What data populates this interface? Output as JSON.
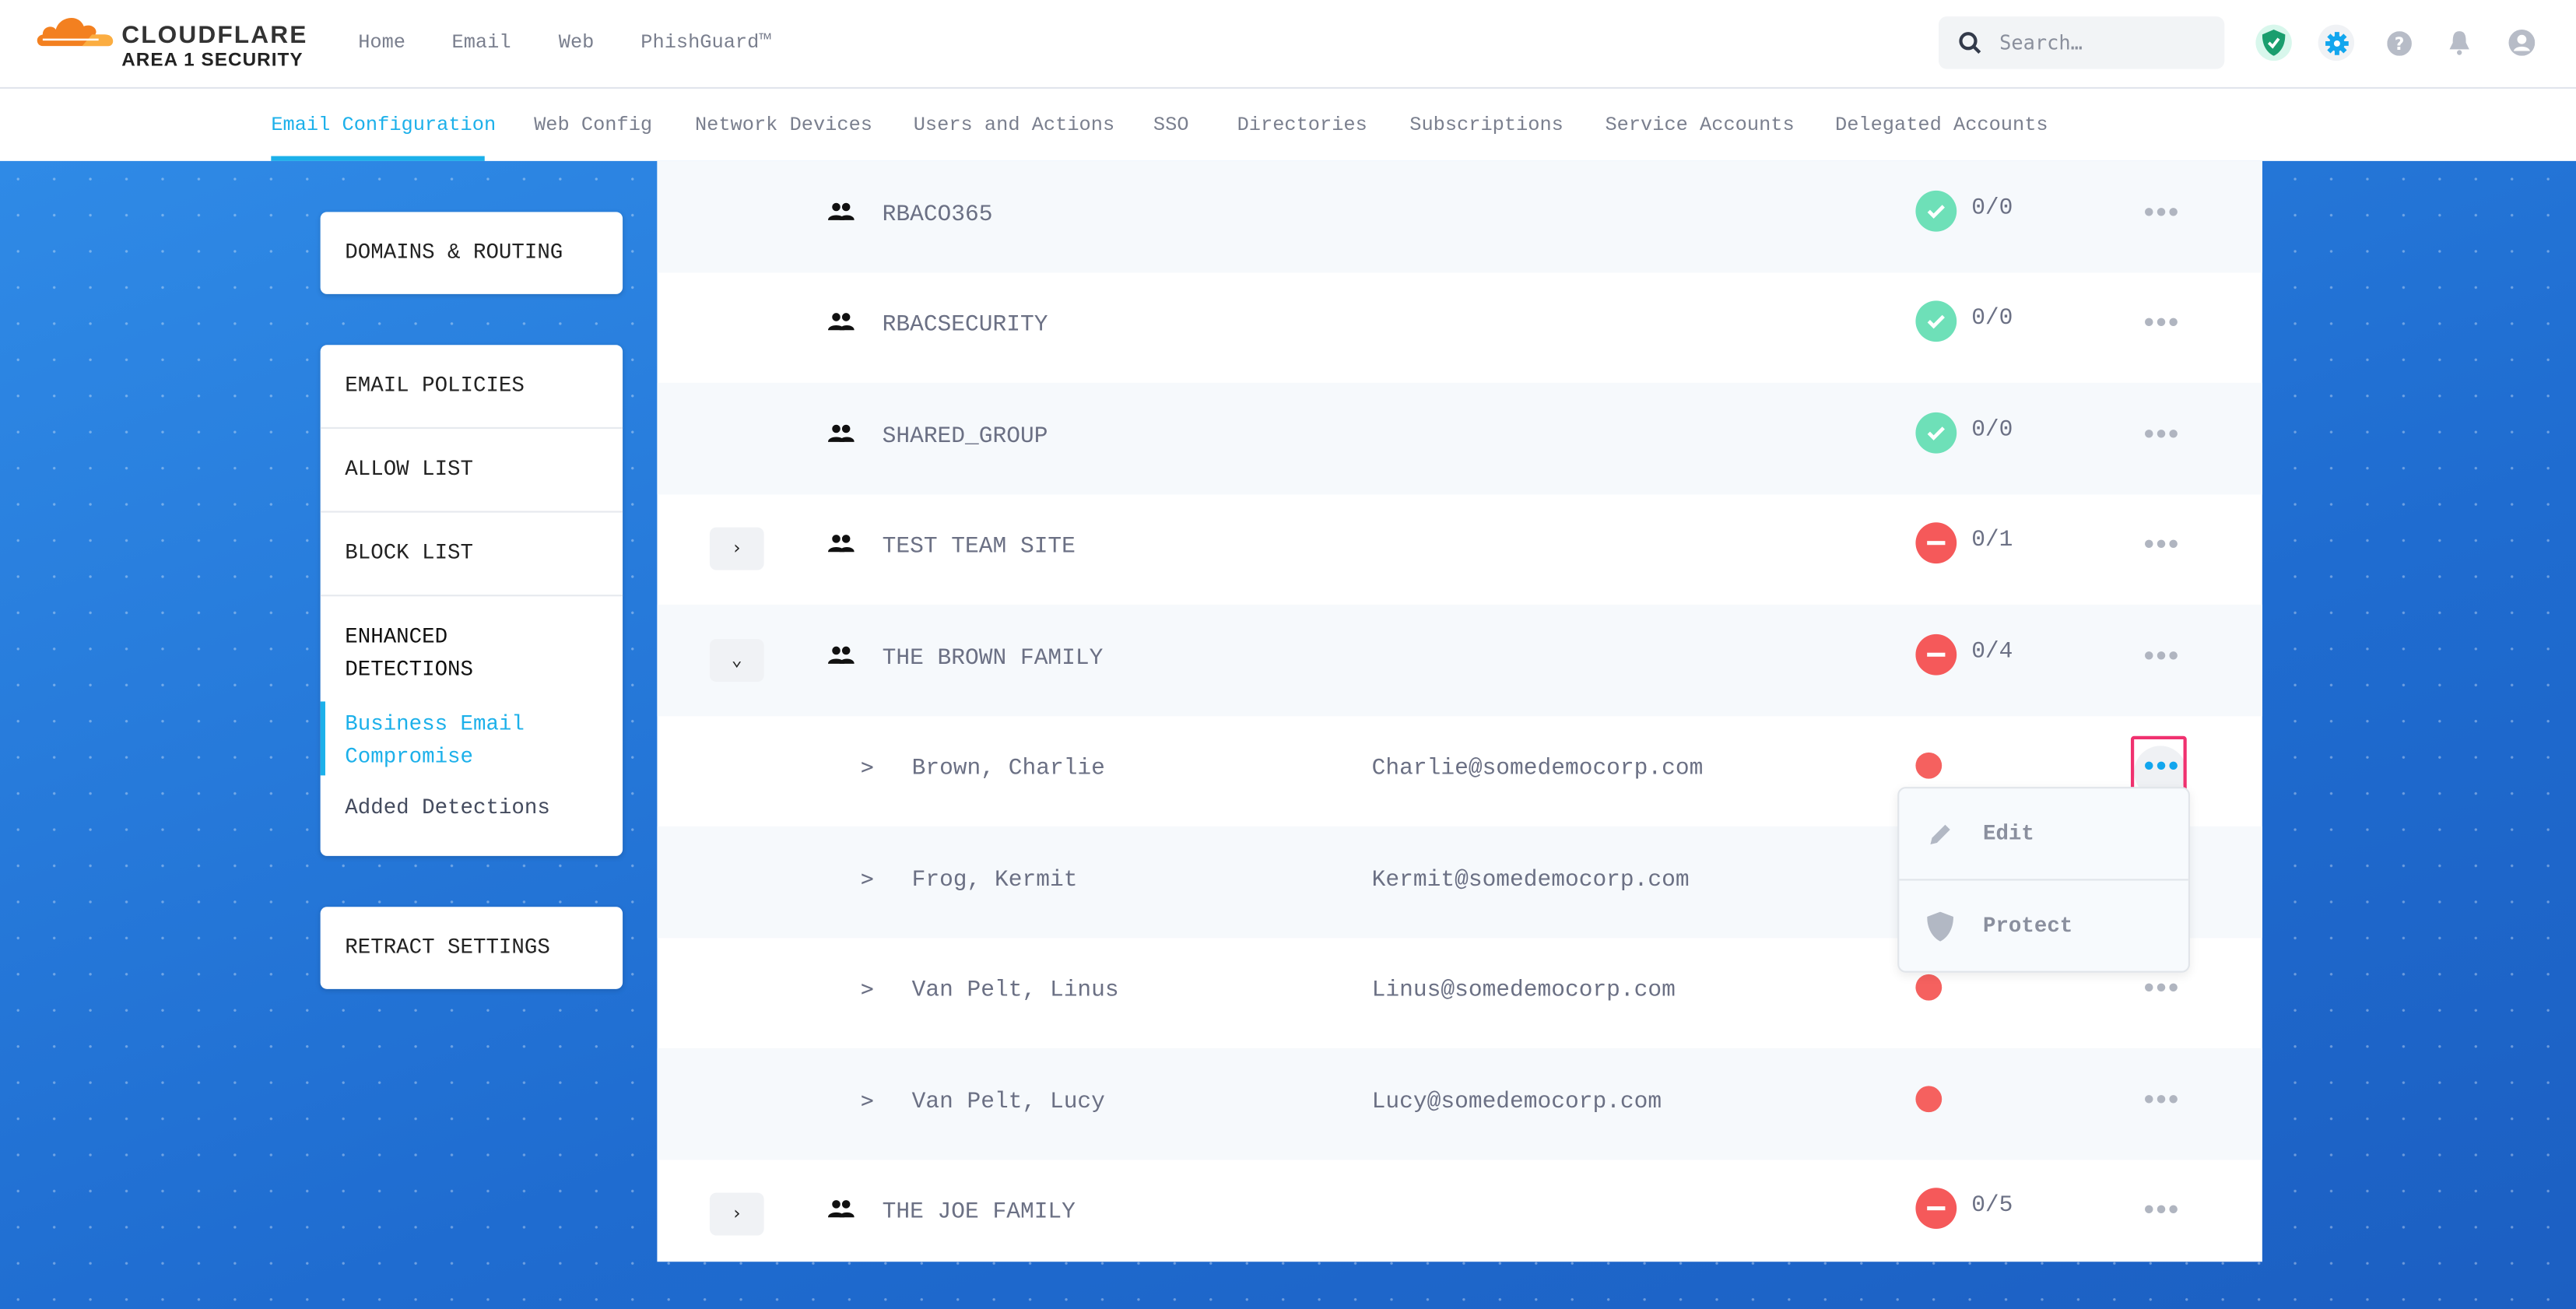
{
  "header": {
    "brand": "CLOUDFLARE",
    "brand_sub": "AREA 1 SECURITY",
    "nav": [
      "Home",
      "Email",
      "Web",
      "PhishGuard™"
    ],
    "search_placeholder": "Search…",
    "icons": [
      "shield-check-icon",
      "gear-icon",
      "help-icon",
      "bell-icon",
      "user-icon"
    ]
  },
  "subnav": {
    "tabs": [
      "Email Configuration",
      "Web Config",
      "Network Devices",
      "Users and Actions",
      "SSO",
      "Directories",
      "Subscriptions",
      "Service Accounts",
      "Delegated Accounts"
    ],
    "active": "Email Configuration"
  },
  "sidebar": {
    "domains": "DOMAINS & ROUTING",
    "email_policies": "EMAIL POLICIES",
    "allow_list": "ALLOW LIST",
    "block_list": "BLOCK LIST",
    "enhanced_1": "ENHANCED",
    "enhanced_2": "DETECTIONS",
    "bec_1": "Business Email",
    "bec_2": "Compromise",
    "added": "Added Detections",
    "retract": "RETRACT SETTINGS"
  },
  "rows": [
    {
      "type": "group",
      "name": "RBACO365",
      "status": "ok",
      "count": "0/0"
    },
    {
      "type": "group",
      "name": "RBACSECURITY",
      "status": "ok",
      "count": "0/0"
    },
    {
      "type": "group",
      "name": "SHARED_GROUP",
      "status": "ok",
      "count": "0/0"
    },
    {
      "type": "group",
      "name": "TEST TEAM SITE",
      "status": "bad",
      "count": "0/1",
      "expand": "collapsed"
    },
    {
      "type": "group",
      "name": "THE BROWN FAMILY",
      "status": "bad",
      "count": "0/4",
      "expand": "expanded"
    },
    {
      "type": "member",
      "name": "Brown, Charlie",
      "email": "Charlie@somedemocorp.com"
    },
    {
      "type": "member",
      "name": "Frog, Kermit",
      "email": "Kermit@somedemocorp.com"
    },
    {
      "type": "member",
      "name": "Van Pelt, Linus",
      "email": "Linus@somedemocorp.com"
    },
    {
      "type": "member",
      "name": "Van Pelt, Lucy",
      "email": "Lucy@somedemocorp.com"
    },
    {
      "type": "group",
      "name": "THE JOE FAMILY",
      "status": "bad",
      "count": "0/5",
      "expand": "collapsed"
    }
  ],
  "menu": {
    "edit": "Edit",
    "protect": "Protect"
  },
  "glyphs": {
    "caret": ">",
    "more": "•••",
    "chev_right": "›",
    "chev_down": "⌄"
  },
  "colors": {
    "accent": "#1cb0ea",
    "ok": "#6ee0b8",
    "error": "#f5595a",
    "highlight": "#f0316f"
  }
}
